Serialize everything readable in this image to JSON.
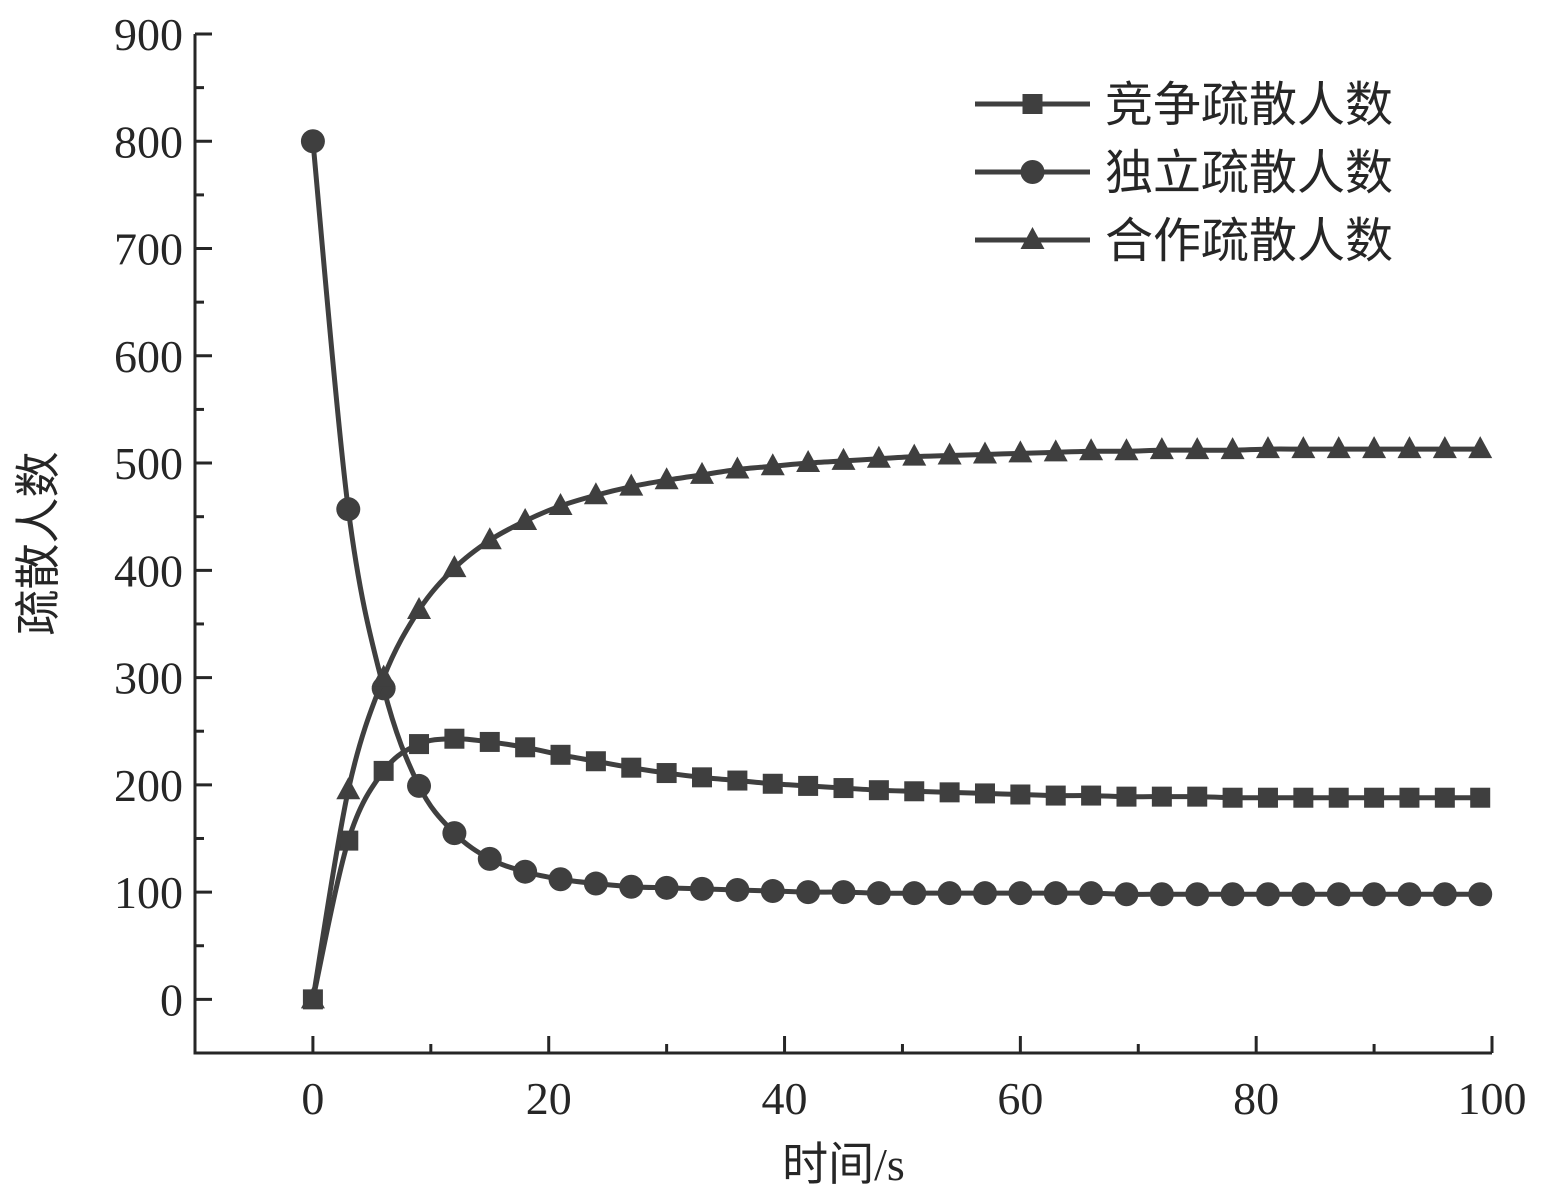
{
  "chart_data": {
    "type": "line",
    "xlabel": "时间/s",
    "ylabel": "疏散人数",
    "xlim": [
      -10,
      100
    ],
    "ylim": [
      -50,
      900
    ],
    "x_ticks": [
      0,
      20,
      40,
      60,
      80,
      100
    ],
    "y_ticks": [
      0,
      100,
      200,
      300,
      400,
      500,
      600,
      700,
      800,
      900
    ],
    "grid": false,
    "legend_position": "top-right",
    "line_color": "#3f3f3f",
    "x": [
      0,
      3,
      6,
      9,
      12,
      15,
      18,
      21,
      24,
      27,
      30,
      33,
      36,
      39,
      42,
      45,
      48,
      51,
      54,
      57,
      60,
      63,
      66,
      69,
      72,
      75,
      78,
      81,
      84,
      87,
      90,
      93,
      96,
      99
    ],
    "series": [
      {
        "name": "竞争疏散人数",
        "marker": "square",
        "values": [
          0,
          148,
          213,
          238,
          243,
          240,
          235,
          228,
          222,
          216,
          211,
          207,
          204,
          201,
          199,
          197,
          195,
          194,
          193,
          192,
          191,
          190,
          190,
          189,
          189,
          189,
          188,
          188,
          188,
          188,
          188,
          188,
          188,
          188
        ]
      },
      {
        "name": "独立疏散人数",
        "marker": "circle",
        "values": [
          800,
          457,
          290,
          199,
          155,
          131,
          119,
          112,
          108,
          105,
          104,
          103,
          102,
          101,
          100,
          100,
          99,
          99,
          99,
          99,
          99,
          99,
          99,
          98,
          98,
          98,
          98,
          98,
          98,
          98,
          98,
          98,
          98,
          98
        ]
      },
      {
        "name": "合作疏散人数",
        "marker": "triangle",
        "values": [
          0,
          195,
          300,
          363,
          402,
          428,
          446,
          460,
          470,
          478,
          484,
          489,
          494,
          497,
          500,
          502,
          504,
          506,
          507,
          508,
          509,
          510,
          511,
          511,
          512,
          512,
          512,
          513,
          513,
          513,
          513,
          513,
          513,
          513
        ]
      }
    ]
  }
}
